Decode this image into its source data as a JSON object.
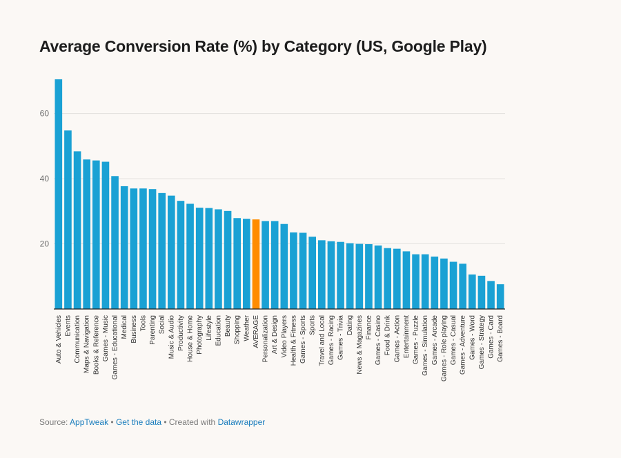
{
  "title": "Average Conversion Rate (%) by Category (US, Google Play)",
  "colors": {
    "bar": "#1aa1d4",
    "highlight": "#ff8c00",
    "grid": "#e2e0dd",
    "axis": "#222222"
  },
  "chart_data": {
    "type": "bar",
    "title": "Average Conversion Rate (%) by Category (US, Google Play)",
    "xlabel": "",
    "ylabel": "",
    "ylim": [
      0,
      70
    ],
    "yticks": [
      20,
      40,
      60
    ],
    "grid": true,
    "highlight_category": "AVERAGE",
    "categories": [
      "Auto & Vehicles",
      "Events",
      "Communication",
      "Maps & Navigation",
      "Books & Reference",
      "Games - Music",
      "Games - Educational",
      "Medical",
      "Business",
      "Tools",
      "Parenting",
      "Social",
      "Music & Audio",
      "Productivity",
      "House & Home",
      "Photography",
      "Lifestyle",
      "Education",
      "Beauty",
      "Shopping",
      "Weather",
      "AVERAGE",
      "Personalization",
      "Art & Design",
      "Video Players",
      "Health & Fitness",
      "Games - Sports",
      "Sports",
      "Travel and Local",
      "Games - Racing",
      "Games - Trivia",
      "Dating",
      "News & Magazines",
      "Finance",
      "Games - Casino",
      "Food & Drink",
      "Games - Action",
      "Entertainment",
      "Games - Puzzle",
      "Games - Simulation",
      "Games - Arcade",
      "Games - Role playing",
      "Games - Casual",
      "Games - Adventure",
      "Games - Word",
      "Games - Strategy",
      "Games - Card",
      "Games - Board"
    ],
    "values": [
      70.5,
      54.8,
      48.4,
      45.9,
      45.6,
      45.2,
      40.8,
      37.7,
      37.0,
      37.0,
      36.8,
      35.6,
      34.8,
      33.2,
      32.3,
      31.1,
      31.0,
      30.6,
      30.1,
      27.9,
      27.7,
      27.5,
      27.0,
      27.0,
      26.1,
      23.5,
      23.4,
      22.2,
      21.1,
      20.8,
      20.6,
      20.2,
      20.0,
      19.9,
      19.5,
      18.7,
      18.5,
      17.7,
      16.8,
      16.8,
      16.1,
      15.5,
      14.5,
      13.9,
      10.6,
      10.2,
      8.6,
      7.6
    ]
  },
  "footer": {
    "source_prefix": "Source: ",
    "source_link": "AppTweak",
    "sep1": " • ",
    "data_link": "Get the data",
    "sep2": " • Created with ",
    "tool_link": "Datawrapper"
  }
}
